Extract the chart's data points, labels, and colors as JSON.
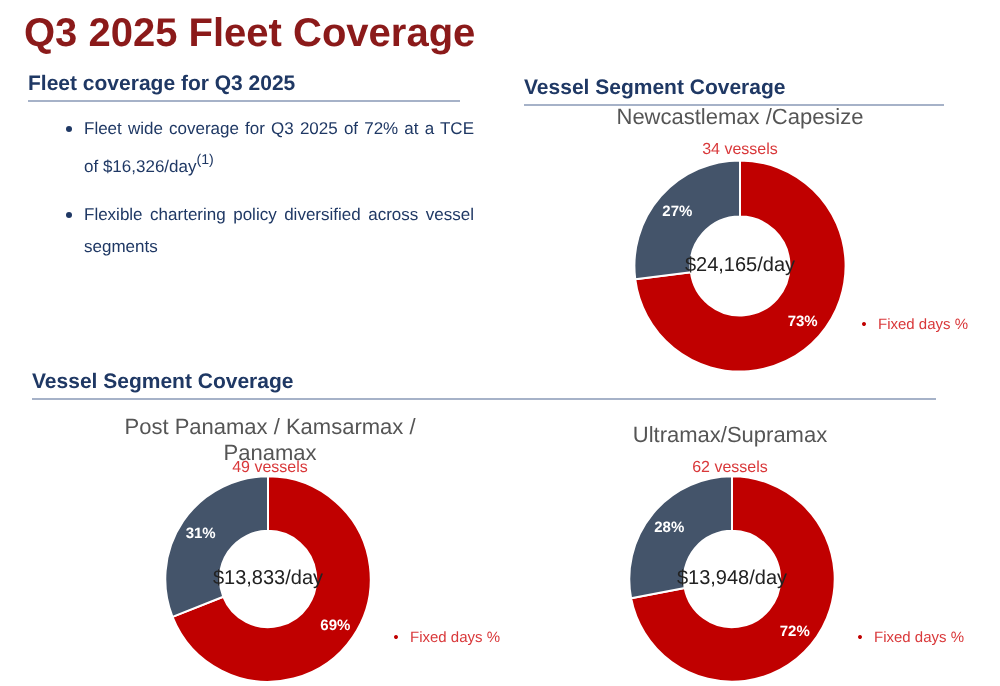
{
  "chart_data": [
    {
      "type": "other",
      "title": "Q3 2025 Fleet Coverage",
      "subtitle": "Fleet coverage for Q3 2025",
      "annotations": [
        "Fleet wide coverage for Q3 2025 of 72% at a TCE of $16,326/day$^{(1)}$",
        "Flexible chartering policy diversified across vessel segments"
      ]
    },
    {
      "type": "donut",
      "title": "Vessel Segment Coverage",
      "subtitle": "Newcastlemax /Capesize",
      "categories": [
        "Fixed days %",
        null
      ],
      "values": [
        73,
        27
      ],
      "value_labels": [
        "73%",
        "27%"
      ],
      "colors": [
        "#c00000",
        "#44546a"
      ],
      "annotations": [
        "34 vessels",
        "$24,165/day"
      ],
      "legend": "bottom right"
    },
    {
      "type": "donut",
      "title": "Vessel Segment Coverage",
      "subtitle": "Post Panamax / Kamsarmax / Panamax",
      "categories": [
        "Fixed days %",
        null
      ],
      "values": [
        69,
        31
      ],
      "value_labels": [
        "69%",
        "31%"
      ],
      "colors": [
        "#c00000",
        "#44546a"
      ],
      "annotations": [
        "49 vessels",
        "$13,833/day"
      ],
      "legend": "bottom right"
    },
    {
      "type": "donut",
      "subtitle": "Ultramax/Supramax",
      "categories": [
        "Fixed days %",
        null
      ],
      "values": [
        72,
        28
      ],
      "value_labels": [
        "72%",
        "28%"
      ],
      "colors": [
        "#c00000",
        "#44546a"
      ],
      "annotations": [
        "62 vessels",
        "$13,948/day"
      ],
      "legend": "bottom right"
    }
  ]
}
